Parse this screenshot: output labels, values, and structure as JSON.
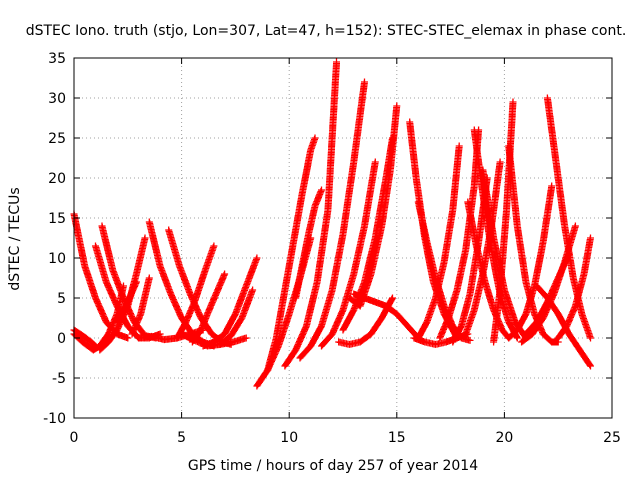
{
  "chart_data": {
    "type": "scatter",
    "title": "dSTEC Iono. truth (stjo, Lon=307, Lat=47, h=152): STEC-STEC_elemax in phase cont.",
    "xlabel": "GPS time / hours of day 257 of year 2014",
    "ylabel": "dSTEC  / TECUs",
    "xlim": [
      0,
      25
    ],
    "ylim": [
      -10,
      35
    ],
    "x_ticks": [
      0,
      5,
      10,
      15,
      20,
      25
    ],
    "y_ticks": [
      -10,
      -5,
      0,
      5,
      10,
      15,
      20,
      25,
      30,
      35
    ],
    "x_tick_labels": [
      "0",
      "5",
      "10",
      "15",
      "20",
      "25"
    ],
    "y_tick_labels": [
      "-10",
      "-5",
      "0",
      "5",
      "10",
      "15",
      "20",
      "25",
      "30",
      "35"
    ],
    "grid": true,
    "marker": "+",
    "color": "#ff0000",
    "series": [
      {
        "x": [
          0.0,
          0.5,
          1.0,
          1.5,
          2.0,
          2.5
        ],
        "y": [
          15.5,
          9.0,
          5.0,
          2.0,
          0.5,
          0.0
        ]
      },
      {
        "x": [
          0.0,
          0.4,
          0.8,
          1.0
        ],
        "y": [
          1.0,
          0.3,
          -0.5,
          -1.0
        ]
      },
      {
        "x": [
          0.0,
          0.4,
          0.9,
          1.2,
          1.6,
          2.0,
          2.3
        ],
        "y": [
          0.5,
          -0.5,
          -1.5,
          -1.0,
          0.5,
          3.0,
          6.5
        ]
      },
      {
        "x": [
          1.0,
          1.5,
          2.0,
          2.5,
          3.0,
          3.5,
          4.0
        ],
        "y": [
          11.5,
          7.0,
          4.0,
          1.5,
          0.0,
          0.0,
          0.5
        ]
      },
      {
        "x": [
          1.3,
          1.8,
          2.3,
          2.8,
          3.3,
          3.8
        ],
        "y": [
          14.0,
          8.5,
          5.0,
          2.0,
          0.3,
          0.0
        ]
      },
      {
        "x": [
          1.2,
          1.6,
          2.0,
          2.5,
          2.9,
          3.3
        ],
        "y": [
          -1.5,
          -0.5,
          1.0,
          4.0,
          8.0,
          12.5
        ]
      },
      {
        "x": [
          2.0,
          2.5,
          2.9
        ],
        "y": [
          2.0,
          4.5,
          7.0
        ]
      },
      {
        "x": [
          3.0,
          3.6,
          4.2,
          4.8,
          5.4,
          6.0
        ],
        "y": [
          0.0,
          0.2,
          -0.2,
          0.0,
          0.5,
          1.0
        ]
      },
      {
        "x": [
          2.7,
          3.1,
          3.5
        ],
        "y": [
          0.5,
          3.0,
          7.5
        ]
      },
      {
        "x": [
          3.5,
          4.0,
          4.5,
          5.0,
          5.5,
          6.0,
          6.5
        ],
        "y": [
          14.5,
          9.0,
          5.5,
          2.5,
          0.5,
          -0.5,
          -1.0
        ]
      },
      {
        "x": [
          4.4,
          4.9,
          5.4,
          5.9,
          6.4,
          6.9,
          7.3
        ],
        "y": [
          13.5,
          9.0,
          5.5,
          2.5,
          0.5,
          -0.5,
          -0.8
        ]
      },
      {
        "x": [
          5.0,
          5.6,
          6.2,
          6.8,
          7.4,
          8.0
        ],
        "y": [
          0.5,
          -0.3,
          -1.0,
          -0.8,
          -0.5,
          0.0
        ]
      },
      {
        "x": [
          4.8,
          5.2,
          5.6,
          6.1,
          6.5
        ],
        "y": [
          0.0,
          2.0,
          4.5,
          8.5,
          11.5
        ]
      },
      {
        "x": [
          5.5,
          5.9,
          6.2,
          6.6,
          7.0
        ],
        "y": [
          -0.5,
          1.0,
          3.0,
          5.5,
          8.0
        ]
      },
      {
        "x": [
          6.0,
          6.5,
          7.0,
          7.5,
          8.0,
          8.5
        ],
        "y": [
          -1.0,
          -0.5,
          0.5,
          3.0,
          6.5,
          10.0
        ]
      },
      {
        "x": [
          6.8,
          7.3,
          7.8,
          8.3
        ],
        "y": [
          -0.8,
          0.3,
          2.5,
          6.0
        ]
      },
      {
        "x": [
          8.5,
          9.0,
          9.5,
          10.0,
          10.5,
          11.0
        ],
        "y": [
          -6.0,
          -4.0,
          -1.0,
          3.0,
          7.5,
          12.5
        ]
      },
      {
        "x": [
          9.0,
          9.4,
          9.8,
          10.2,
          10.6,
          11.0,
          11.2
        ],
        "y": [
          -4.0,
          0.0,
          6.0,
          12.0,
          18.0,
          23.5,
          25.0
        ]
      },
      {
        "x": [
          9.8,
          10.3,
          10.8,
          11.3,
          11.8,
          12.2
        ],
        "y": [
          -3.5,
          -1.5,
          1.5,
          7.0,
          16.0,
          34.5
        ]
      },
      {
        "x": [
          10.5,
          11.0,
          11.5,
          12.0,
          12.5,
          13.0,
          13.5
        ],
        "y": [
          -2.5,
          -1.0,
          1.5,
          6.0,
          13.0,
          22.0,
          32.0
        ]
      },
      {
        "x": [
          10.3,
          10.6,
          10.9,
          11.2,
          11.5
        ],
        "y": [
          5.0,
          9.0,
          13.0,
          16.5,
          18.5
        ]
      },
      {
        "x": [
          11.5,
          12.0,
          12.5,
          13.0,
          13.5,
          14.0
        ],
        "y": [
          -1.0,
          0.5,
          3.5,
          8.0,
          14.0,
          22.0
        ]
      },
      {
        "x": [
          12.5,
          13.0,
          13.5,
          14.0,
          14.5,
          14.8
        ],
        "y": [
          1.0,
          3.5,
          7.0,
          12.5,
          20.0,
          25.0
        ]
      },
      {
        "x": [
          12.8,
          13.3,
          13.8,
          14.3,
          14.7,
          15.0
        ],
        "y": [
          5.0,
          4.0,
          8.0,
          14.0,
          21.0,
          29.0
        ]
      },
      {
        "x": [
          13.0,
          13.5,
          14.0,
          14.5,
          15.0,
          15.5,
          16.0
        ],
        "y": [
          5.5,
          5.0,
          4.5,
          4.0,
          3.0,
          1.5,
          0.0
        ]
      },
      {
        "x": [
          12.3,
          12.8,
          13.3,
          13.8,
          14.3,
          14.8
        ],
        "y": [
          -0.5,
          -0.8,
          -0.5,
          0.5,
          2.5,
          5.0
        ]
      },
      {
        "x": [
          15.6,
          15.9,
          16.3,
          16.7,
          17.2,
          17.8
        ],
        "y": [
          27.0,
          20.0,
          12.5,
          7.0,
          3.0,
          0.0
        ]
      },
      {
        "x": [
          16.0,
          16.4,
          16.8,
          17.2,
          17.6,
          18.0,
          18.4
        ],
        "y": [
          17.0,
          12.0,
          7.5,
          4.0,
          1.5,
          0.0,
          -0.3
        ]
      },
      {
        "x": [
          15.8,
          16.3,
          16.8,
          17.3,
          17.8,
          18.3
        ],
        "y": [
          0.0,
          -0.5,
          -0.8,
          -0.5,
          0.0,
          0.5
        ]
      },
      {
        "x": [
          16.0,
          16.4,
          16.8,
          17.2,
          17.6,
          17.9
        ],
        "y": [
          0.0,
          2.0,
          5.0,
          9.5,
          16.0,
          24.0
        ]
      },
      {
        "x": [
          17.0,
          17.4,
          17.8,
          18.2,
          18.6,
          18.8
        ],
        "y": [
          0.0,
          2.5,
          6.0,
          11.0,
          19.0,
          26.0
        ]
      },
      {
        "x": [
          17.6,
          18.0,
          18.4,
          18.8,
          19.2
        ],
        "y": [
          -0.5,
          1.5,
          5.5,
          12.0,
          20.0
        ]
      },
      {
        "x": [
          18.2,
          18.6,
          19.0,
          19.4,
          19.8
        ],
        "y": [
          0.5,
          3.5,
          8.0,
          14.0,
          22.0
        ]
      },
      {
        "x": [
          18.6,
          19.0,
          19.4,
          19.8,
          20.2,
          20.6
        ],
        "y": [
          26.0,
          18.0,
          11.0,
          5.5,
          2.0,
          0.0
        ]
      },
      {
        "x": [
          19.0,
          19.5,
          20.0,
          20.5,
          21.0
        ],
        "y": [
          21.0,
          12.5,
          6.0,
          2.0,
          0.0
        ]
      },
      {
        "x": [
          18.3,
          18.7,
          19.1,
          19.5,
          19.9,
          20.2
        ],
        "y": [
          17.0,
          11.5,
          7.0,
          3.5,
          1.0,
          0.0
        ]
      },
      {
        "x": [
          19.5,
          19.8,
          20.1,
          20.4
        ],
        "y": [
          -0.5,
          6.0,
          16.0,
          29.5
        ]
      },
      {
        "x": [
          20.2,
          20.6,
          21.0,
          21.4,
          21.8,
          22.2,
          22.5
        ],
        "y": [
          24.0,
          14.0,
          7.0,
          3.0,
          0.5,
          -0.5,
          -0.5
        ]
      },
      {
        "x": [
          20.2,
          20.6,
          21.0,
          21.4,
          21.8,
          22.2
        ],
        "y": [
          0.0,
          1.0,
          3.0,
          6.5,
          12.0,
          19.0
        ]
      },
      {
        "x": [
          20.8,
          21.3,
          21.8,
          22.3,
          22.8,
          23.3
        ],
        "y": [
          -0.5,
          0.5,
          2.5,
          5.5,
          9.5,
          14.0
        ]
      },
      {
        "x": [
          22.0,
          22.4,
          22.8,
          23.2,
          23.6,
          24.0
        ],
        "y": [
          30.0,
          22.0,
          14.0,
          7.5,
          3.0,
          0.0
        ]
      },
      {
        "x": [
          21.5,
          22.0,
          22.5,
          23.0,
          23.5,
          24.0
        ],
        "y": [
          6.5,
          5.0,
          3.0,
          0.5,
          -1.5,
          -3.5
        ]
      },
      {
        "x": [
          22.5,
          22.9,
          23.3,
          23.7,
          24.0
        ],
        "y": [
          0.0,
          1.5,
          4.0,
          8.0,
          12.5
        ]
      },
      {
        "x": [
          21.0,
          21.5,
          22.0,
          22.5,
          23.0
        ],
        "y": [
          0.5,
          2.0,
          4.5,
          7.5,
          10.5
        ]
      }
    ]
  }
}
